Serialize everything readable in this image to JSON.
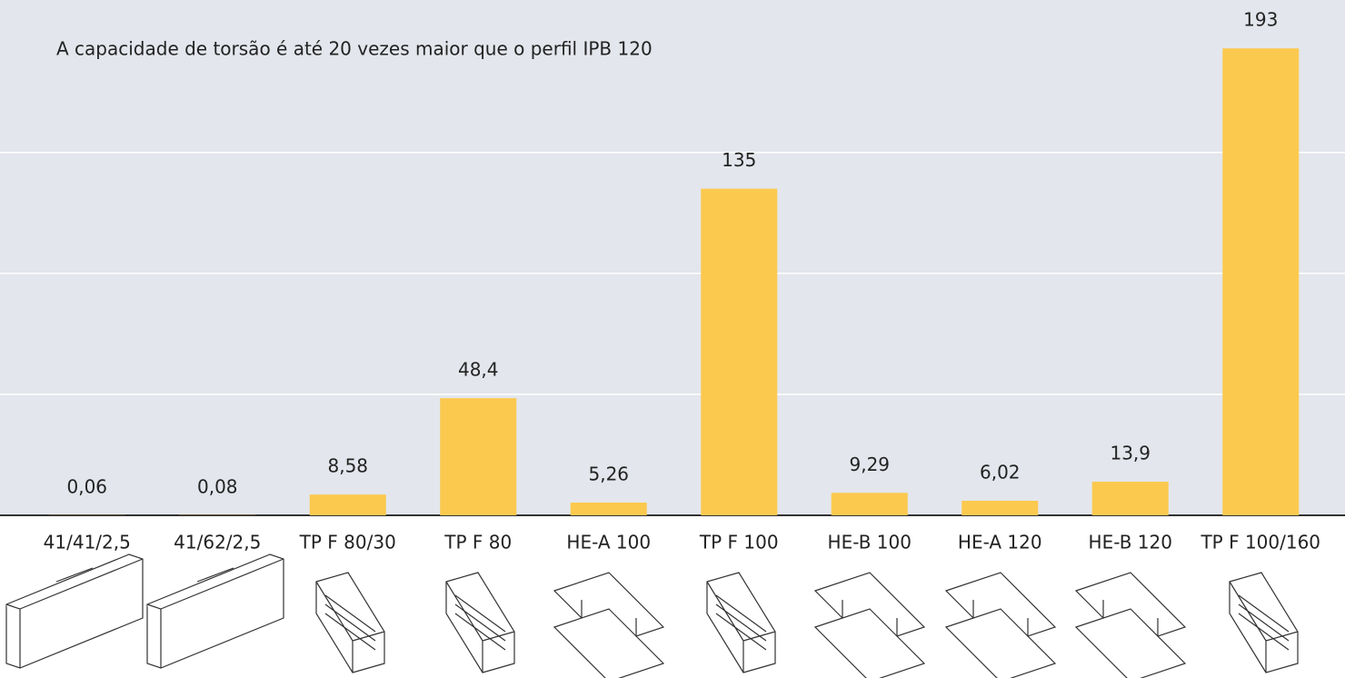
{
  "chart_data": {
    "type": "bar",
    "title": "A capacidade de torsão é até 20 vezes maior que o perfil IPB 120",
    "categories": [
      "41/41/2,5",
      "41/62/2,5",
      "TP F 80/30",
      "TP F 80",
      "HE-A 100",
      "TP F 100",
      "HE-B 100",
      "HE-A 120",
      "HE-B 120",
      "TP F 100/160"
    ],
    "values": [
      0.06,
      0.08,
      8.58,
      48.4,
      5.26,
      135,
      9.29,
      6.02,
      13.9,
      193
    ],
    "value_labels": [
      "0,06",
      "0,08",
      "8,58",
      "48,4",
      "5,26",
      "135",
      "9,29",
      "6,02",
      "13,9",
      "193"
    ],
    "color": "#fcc94f",
    "ylim": [
      0,
      213
    ],
    "yticks": [
      0,
      50,
      100,
      150
    ],
    "grid": true
  }
}
